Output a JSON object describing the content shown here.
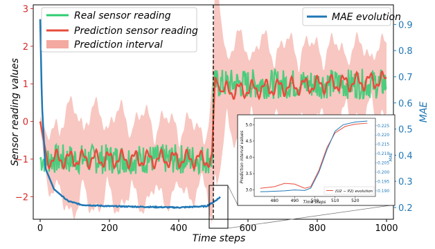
{
  "chart_data": [
    {
      "type": "line",
      "xlabel": "Time steps",
      "ylabel": "Sensor reading values",
      "y2label": "MAE",
      "xlim": [
        -20,
        1020
      ],
      "ylim": [
        -2.6,
        3.1
      ],
      "y2lim": [
        0.155,
        0.975
      ],
      "xticks": [
        0,
        200,
        400,
        600,
        800,
        1000
      ],
      "yticks": [
        -2,
        -1,
        0,
        1,
        2,
        3
      ],
      "y2ticks": [
        0.2,
        0.3,
        0.4,
        0.5,
        0.6,
        0.7,
        0.8,
        0.9
      ],
      "change_point_x": 500,
      "series": [
        {
          "name": "Real sensor reading",
          "color": "#2ecc71",
          "axis": "left",
          "segments": [
            {
              "x_range": [
                0,
                500
              ],
              "mean": -1.0,
              "noise_amplitude": 0.4
            },
            {
              "x_range": [
                500,
                1000
              ],
              "mean": 1.0,
              "noise_amplitude": 0.4
            }
          ]
        },
        {
          "name": "Prediction sensor reading",
          "color": "#e74c3c",
          "axis": "left",
          "points": [
            [
              0,
              0.0
            ],
            [
              10,
              -0.5
            ],
            [
              20,
              -1.0
            ],
            [
              480,
              -1.0
            ],
            [
              495,
              -1.1
            ],
            [
              505,
              1.2
            ],
            [
              520,
              0.8
            ],
            [
              1000,
              1.1
            ]
          ]
        },
        {
          "name": "Prediction interval",
          "color": "#f4a9a0",
          "axis": "left",
          "kind": "band",
          "approx_half_width": [
            [
              0,
              0.2
            ],
            [
              60,
              1.5
            ],
            [
              300,
              1.3
            ],
            [
              480,
              1.0
            ],
            [
              510,
              2.8
            ],
            [
              540,
              1.5
            ],
            [
              1000,
              1.0
            ]
          ]
        },
        {
          "name": "MAE evolution",
          "color": "#1f77b4",
          "axis": "right",
          "points": [
            [
              0,
              0.92
            ],
            [
              5,
              0.6
            ],
            [
              15,
              0.35
            ],
            [
              40,
              0.27
            ],
            [
              80,
              0.225
            ],
            [
              120,
              0.21
            ],
            [
              200,
              0.205
            ],
            [
              400,
              0.2
            ],
            [
              480,
              0.205
            ],
            [
              500,
              0.22
            ],
            [
              520,
              0.24
            ]
          ]
        }
      ],
      "legend_left": "upper-left",
      "legend_right": "upper-right"
    },
    {
      "type": "line",
      "inset": true,
      "xlabel": "Time steps",
      "ylabel": "Prediction interval values",
      "y2label": "MAE",
      "xlim": [
        470,
        530
      ],
      "ylim": [
        2.8,
        5.2
      ],
      "y2lim": [
        0.187,
        0.229
      ],
      "xticks": [
        480,
        490,
        500,
        510,
        520
      ],
      "yticks": [
        3.0,
        3.5,
        4.0,
        4.5,
        5.0
      ],
      "y2ticks": [
        0.19,
        0.195,
        0.2,
        0.205,
        0.21,
        0.215,
        0.22,
        0.225
      ],
      "series": [
        {
          "name": "(U2 - P2) evolution",
          "color": "#e74c3c",
          "points": [
            [
              473,
              3.05
            ],
            [
              480,
              3.1
            ],
            [
              485,
              3.2
            ],
            [
              490,
              3.18
            ],
            [
              495,
              3.05
            ],
            [
              498,
              3.1
            ],
            [
              502,
              3.6
            ],
            [
              506,
              4.3
            ],
            [
              510,
              4.75
            ],
            [
              515,
              4.95
            ],
            [
              520,
              5.02
            ],
            [
              526,
              5.05
            ]
          ]
        },
        {
          "name": "MAE",
          "color": "#1f77b4",
          "axis": "right",
          "points": [
            [
              473,
              0.1895
            ],
            [
              480,
              0.1898
            ],
            [
              485,
              0.19
            ],
            [
              490,
              0.1905
            ],
            [
              495,
              0.1902
            ],
            [
              498,
              0.1915
            ],
            [
              502,
              0.2
            ],
            [
              506,
              0.212
            ],
            [
              510,
              0.222
            ],
            [
              514,
              0.2255
            ],
            [
              520,
              0.227
            ],
            [
              526,
              0.2275
            ]
          ]
        }
      ]
    }
  ],
  "legend": {
    "real": "Real sensor reading",
    "pred": "Prediction sensor reading",
    "interval": "Prediction interval",
    "mae": "MAE evolution",
    "inset": "(U2 − P2) evolution"
  },
  "labels": {
    "x": "Time steps",
    "yleft": "Sensor reading values",
    "yright": "MAE",
    "inset_x": "Time steps",
    "inset_y": "Prediction interval values",
    "inset_y2": "MAE"
  }
}
